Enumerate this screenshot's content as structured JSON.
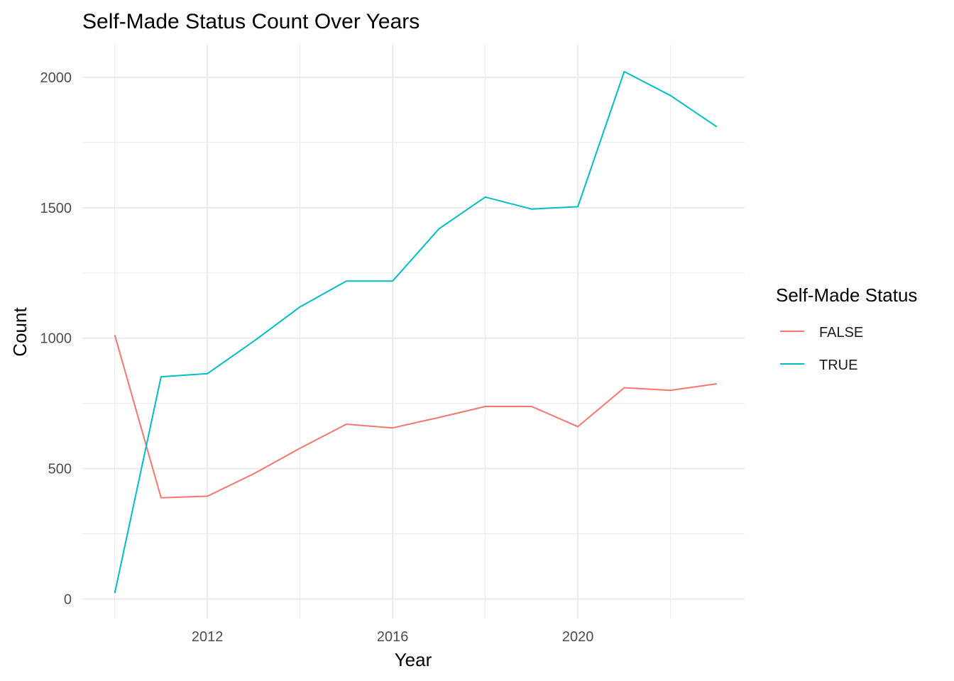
{
  "chart_data": {
    "type": "line",
    "title": "Self-Made Status Count Over Years",
    "xlabel": "Year",
    "ylabel": "Count",
    "x": [
      2010,
      2011,
      2012,
      2013,
      2014,
      2015,
      2016,
      2017,
      2018,
      2019,
      2020,
      2021,
      2022,
      2023
    ],
    "xticks": [
      2012,
      2016,
      2020
    ],
    "xlim": [
      2009.3,
      2023.6
    ],
    "yticks": [
      0,
      500,
      1000,
      1500,
      2000
    ],
    "ylim": [
      -75,
      2125
    ],
    "grid": true,
    "legend": {
      "title": "Self-Made Status",
      "position": "right"
    },
    "series": [
      {
        "name": "FALSE",
        "color": "#F8766D",
        "values": [
          1012,
          388,
          394,
          480,
          578,
          670,
          656,
          696,
          738,
          738,
          661,
          810,
          800,
          825
        ]
      },
      {
        "name": "TRUE",
        "color": "#00BFC4",
        "values": [
          23,
          852,
          864,
          988,
          1120,
          1219,
          1219,
          1419,
          1541,
          1495,
          1504,
          2022,
          1930,
          1810
        ]
      }
    ]
  }
}
